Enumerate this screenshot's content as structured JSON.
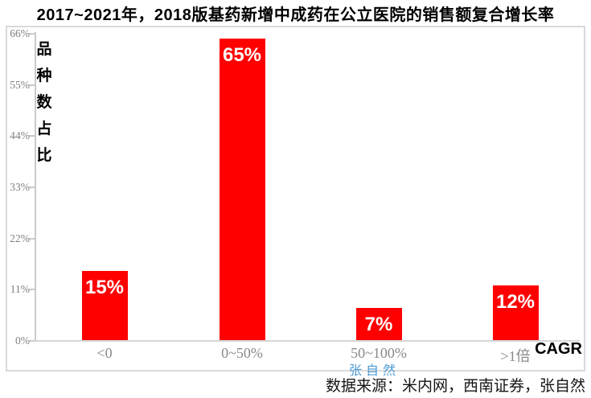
{
  "title": "2017~2021年，2018版基药新增中成药在公立医院的销售额复合增长率",
  "chart_data": {
    "type": "bar",
    "title": "2017~2021年，2018版基药新增中成药在公立医院的销售额复合增长率",
    "categories": [
      "<0",
      "0~50%",
      "50~100%",
      ">1倍"
    ],
    "values": [
      15,
      65,
      7,
      12
    ],
    "data_labels": [
      "15%",
      "65%",
      "7%",
      "12%"
    ],
    "xlabel": "CAGR",
    "ylabel": "品种数占比",
    "ylim": [
      0,
      66
    ],
    "ytick_values": [
      0,
      11,
      22,
      33,
      44,
      55,
      66
    ],
    "ytick_labels": [
      "0%",
      "11%",
      "22%",
      "33%",
      "44%",
      "55%",
      "66%"
    ],
    "grid": false,
    "legend": "none",
    "bar_color": "#ff0000",
    "data_label_color": "#ffffff"
  },
  "watermark": {
    "text": "张自然",
    "color": "#4e9bd5"
  },
  "source_note": "数据来源：米内网，西南证券，张自然",
  "colors": {
    "bar": "#ff0000",
    "frame_border": "#dadada",
    "axis_line": "#c9c9c9",
    "tick_text": "#808080",
    "category_text": "#8a8a8a",
    "title_text": "#000000",
    "watermark_blue": "#4e9bd5"
  }
}
